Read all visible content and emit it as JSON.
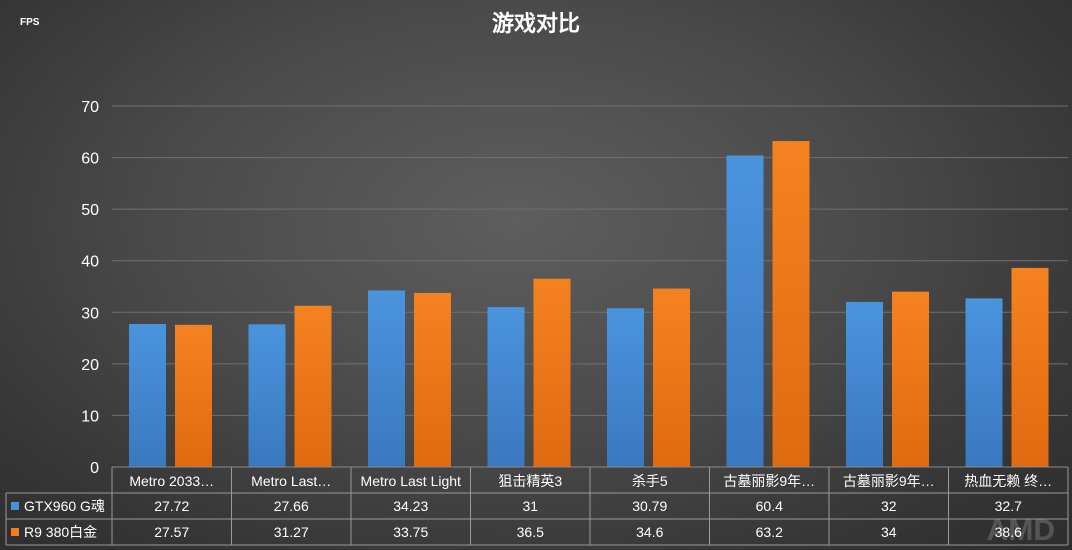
{
  "chart_data": {
    "type": "bar",
    "title": "游戏对比",
    "ylabel": "FPS",
    "ylim": [
      0,
      70
    ],
    "yticks": [
      0,
      10,
      20,
      30,
      40,
      50,
      60,
      70
    ],
    "grid": true,
    "legend": "data-table",
    "categories": [
      "Metro 2033…",
      "Metro Last…",
      "Metro Last Light",
      "狙击精英3",
      "杀手5",
      "古墓丽影9年…",
      "古墓丽影9年…",
      "热血无赖 终…"
    ],
    "series": [
      {
        "name": "GTX960 G魂",
        "color": "#4a90d9",
        "values": [
          27.72,
          27.66,
          34.23,
          31,
          30.79,
          60.4,
          32,
          32.7
        ]
      },
      {
        "name": "R9 380白金",
        "color": "#f07c1e",
        "values": [
          27.57,
          31.27,
          33.75,
          36.5,
          34.6,
          63.2,
          34,
          38.6
        ]
      }
    ]
  },
  "watermark": "AMD"
}
